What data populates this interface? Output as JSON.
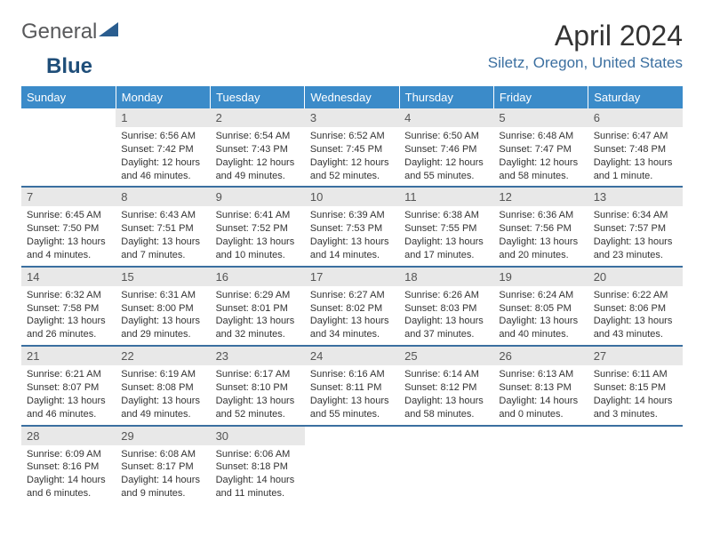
{
  "logo": {
    "text1": "General",
    "text2": "Blue"
  },
  "title": "April 2024",
  "location": "Siletz, Oregon, United States",
  "colors": {
    "header_bg": "#3b8bc9",
    "header_text": "#ffffff",
    "divider": "#3b6fa0",
    "daynum_bg": "#e8e8e8",
    "location_color": "#3b6fa0",
    "logo_accent": "#2a5d8f"
  },
  "dayHeaders": [
    "Sunday",
    "Monday",
    "Tuesday",
    "Wednesday",
    "Thursday",
    "Friday",
    "Saturday"
  ],
  "weeks": [
    [
      {
        "n": "",
        "sunrise": "",
        "sunset": "",
        "daylight": ""
      },
      {
        "n": "1",
        "sunrise": "6:56 AM",
        "sunset": "7:42 PM",
        "daylight": "12 hours and 46 minutes."
      },
      {
        "n": "2",
        "sunrise": "6:54 AM",
        "sunset": "7:43 PM",
        "daylight": "12 hours and 49 minutes."
      },
      {
        "n": "3",
        "sunrise": "6:52 AM",
        "sunset": "7:45 PM",
        "daylight": "12 hours and 52 minutes."
      },
      {
        "n": "4",
        "sunrise": "6:50 AM",
        "sunset": "7:46 PM",
        "daylight": "12 hours and 55 minutes."
      },
      {
        "n": "5",
        "sunrise": "6:48 AM",
        "sunset": "7:47 PM",
        "daylight": "12 hours and 58 minutes."
      },
      {
        "n": "6",
        "sunrise": "6:47 AM",
        "sunset": "7:48 PM",
        "daylight": "13 hours and 1 minute."
      }
    ],
    [
      {
        "n": "7",
        "sunrise": "6:45 AM",
        "sunset": "7:50 PM",
        "daylight": "13 hours and 4 minutes."
      },
      {
        "n": "8",
        "sunrise": "6:43 AM",
        "sunset": "7:51 PM",
        "daylight": "13 hours and 7 minutes."
      },
      {
        "n": "9",
        "sunrise": "6:41 AM",
        "sunset": "7:52 PM",
        "daylight": "13 hours and 10 minutes."
      },
      {
        "n": "10",
        "sunrise": "6:39 AM",
        "sunset": "7:53 PM",
        "daylight": "13 hours and 14 minutes."
      },
      {
        "n": "11",
        "sunrise": "6:38 AM",
        "sunset": "7:55 PM",
        "daylight": "13 hours and 17 minutes."
      },
      {
        "n": "12",
        "sunrise": "6:36 AM",
        "sunset": "7:56 PM",
        "daylight": "13 hours and 20 minutes."
      },
      {
        "n": "13",
        "sunrise": "6:34 AM",
        "sunset": "7:57 PM",
        "daylight": "13 hours and 23 minutes."
      }
    ],
    [
      {
        "n": "14",
        "sunrise": "6:32 AM",
        "sunset": "7:58 PM",
        "daylight": "13 hours and 26 minutes."
      },
      {
        "n": "15",
        "sunrise": "6:31 AM",
        "sunset": "8:00 PM",
        "daylight": "13 hours and 29 minutes."
      },
      {
        "n": "16",
        "sunrise": "6:29 AM",
        "sunset": "8:01 PM",
        "daylight": "13 hours and 32 minutes."
      },
      {
        "n": "17",
        "sunrise": "6:27 AM",
        "sunset": "8:02 PM",
        "daylight": "13 hours and 34 minutes."
      },
      {
        "n": "18",
        "sunrise": "6:26 AM",
        "sunset": "8:03 PM",
        "daylight": "13 hours and 37 minutes."
      },
      {
        "n": "19",
        "sunrise": "6:24 AM",
        "sunset": "8:05 PM",
        "daylight": "13 hours and 40 minutes."
      },
      {
        "n": "20",
        "sunrise": "6:22 AM",
        "sunset": "8:06 PM",
        "daylight": "13 hours and 43 minutes."
      }
    ],
    [
      {
        "n": "21",
        "sunrise": "6:21 AM",
        "sunset": "8:07 PM",
        "daylight": "13 hours and 46 minutes."
      },
      {
        "n": "22",
        "sunrise": "6:19 AM",
        "sunset": "8:08 PM",
        "daylight": "13 hours and 49 minutes."
      },
      {
        "n": "23",
        "sunrise": "6:17 AM",
        "sunset": "8:10 PM",
        "daylight": "13 hours and 52 minutes."
      },
      {
        "n": "24",
        "sunrise": "6:16 AM",
        "sunset": "8:11 PM",
        "daylight": "13 hours and 55 minutes."
      },
      {
        "n": "25",
        "sunrise": "6:14 AM",
        "sunset": "8:12 PM",
        "daylight": "13 hours and 58 minutes."
      },
      {
        "n": "26",
        "sunrise": "6:13 AM",
        "sunset": "8:13 PM",
        "daylight": "14 hours and 0 minutes."
      },
      {
        "n": "27",
        "sunrise": "6:11 AM",
        "sunset": "8:15 PM",
        "daylight": "14 hours and 3 minutes."
      }
    ],
    [
      {
        "n": "28",
        "sunrise": "6:09 AM",
        "sunset": "8:16 PM",
        "daylight": "14 hours and 6 minutes."
      },
      {
        "n": "29",
        "sunrise": "6:08 AM",
        "sunset": "8:17 PM",
        "daylight": "14 hours and 9 minutes."
      },
      {
        "n": "30",
        "sunrise": "6:06 AM",
        "sunset": "8:18 PM",
        "daylight": "14 hours and 11 minutes."
      },
      {
        "n": "",
        "sunrise": "",
        "sunset": "",
        "daylight": ""
      },
      {
        "n": "",
        "sunrise": "",
        "sunset": "",
        "daylight": ""
      },
      {
        "n": "",
        "sunrise": "",
        "sunset": "",
        "daylight": ""
      },
      {
        "n": "",
        "sunrise": "",
        "sunset": "",
        "daylight": ""
      }
    ]
  ]
}
